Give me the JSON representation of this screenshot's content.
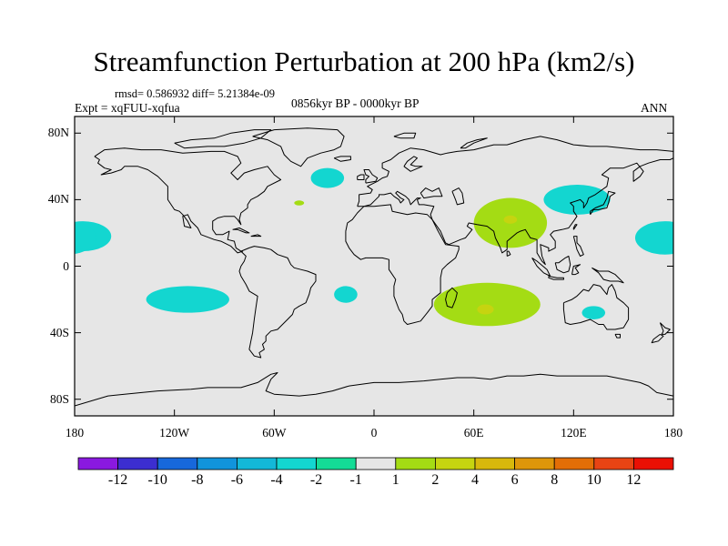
{
  "title": "Streamfunction Perturbation at 200 hPa (km2/s)",
  "subtitle": {
    "stats": "rmsd= 0.586932 diff= 5.21384e-09",
    "experiment": "Expt = xqFUU-xqfua",
    "period": "0856kyr BP - 0000kyr BP",
    "season": "ANN"
  },
  "colors": {
    "background": "#e6e6e6",
    "coast": "#000000",
    "palette": [
      "#8a19e0",
      "#3c2ed0",
      "#1768dc",
      "#1194dc",
      "#13b8d8",
      "#13d6d0",
      "#14dc96",
      "#e6e6e6",
      "#a4dc14",
      "#c6d410",
      "#d8b80c",
      "#de960a",
      "#e36e06",
      "#e84414",
      "#ea1004"
    ]
  },
  "chart_data": {
    "type": "heatmap",
    "projection": "cylindrical-equidistant",
    "xlim": [
      -180,
      180
    ],
    "ylim": [
      -90,
      90
    ],
    "x_ticks": [
      {
        "value": -180,
        "label": "180"
      },
      {
        "value": -120,
        "label": "120W"
      },
      {
        "value": -60,
        "label": "60W"
      },
      {
        "value": 0,
        "label": "0"
      },
      {
        "value": 60,
        "label": "60E"
      },
      {
        "value": 120,
        "label": "120E"
      },
      {
        "value": 180,
        "label": "180"
      }
    ],
    "y_ticks": [
      {
        "value": 80,
        "label": "80N"
      },
      {
        "value": 40,
        "label": "40N"
      },
      {
        "value": 0,
        "label": "0"
      },
      {
        "value": -40,
        "label": "40S"
      },
      {
        "value": -80,
        "label": "80S"
      }
    ],
    "colorbar": {
      "levels": [
        "-12",
        "-10",
        "-8",
        "-6",
        "-4",
        "-2",
        "-1",
        "1",
        "2",
        "4",
        "6",
        "8",
        "10",
        "12"
      ]
    },
    "anomalies": [
      {
        "id": "npac-west",
        "lon": -175,
        "lat": 18,
        "rlon": 17,
        "rlat": 9,
        "level": -2
      },
      {
        "id": "npac-west-core",
        "lon": -180,
        "lat": 18,
        "rlon": 7,
        "rlat": 3,
        "level": -4
      },
      {
        "id": "natl-north",
        "lon": -28,
        "lat": 53,
        "rlon": 10,
        "rlat": 6,
        "level": -2
      },
      {
        "id": "natl-small",
        "lon": -45,
        "lat": 38,
        "rlon": 3,
        "rlat": 1.5,
        "level": 1
      },
      {
        "id": "spac",
        "lon": -112,
        "lat": -20,
        "rlon": 25,
        "rlat": 8,
        "level": -2
      },
      {
        "id": "satl",
        "lon": -17,
        "lat": -17,
        "rlon": 7,
        "rlat": 5,
        "level": -2
      },
      {
        "id": "south-asia",
        "lon": 82,
        "lat": 26,
        "rlon": 22,
        "rlat": 15,
        "level": 1
      },
      {
        "id": "south-asia-core",
        "lon": 82,
        "lat": 28,
        "rlon": 4,
        "rlat": 2.5,
        "level": 2
      },
      {
        "id": "east-asia",
        "lon": 122,
        "lat": 40,
        "rlon": 20,
        "rlat": 9,
        "level": -2
      },
      {
        "id": "west-pacific",
        "lon": 175,
        "lat": 17,
        "rlon": 18,
        "rlat": 10,
        "level": -2
      },
      {
        "id": "indian-ocean",
        "lon": 68,
        "lat": -23,
        "rlon": 32,
        "rlat": 13,
        "level": 1
      },
      {
        "id": "indian-ocean-core",
        "lon": 67,
        "lat": -26,
        "rlon": 5,
        "rlat": 3,
        "level": 2
      },
      {
        "id": "australia",
        "lon": 132,
        "lat": -28,
        "rlon": 7,
        "rlat": 4,
        "level": -2
      }
    ]
  }
}
